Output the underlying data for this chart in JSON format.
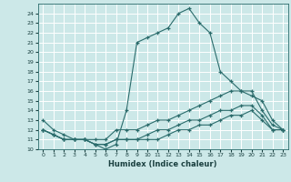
{
  "xlabel": "Humidex (Indice chaleur)",
  "ylabel": "",
  "xlim": [
    -0.5,
    23.5
  ],
  "ylim": [
    10,
    25
  ],
  "yticks": [
    10,
    11,
    12,
    13,
    14,
    15,
    16,
    17,
    18,
    19,
    20,
    21,
    22,
    23,
    24
  ],
  "xticks": [
    0,
    1,
    2,
    3,
    4,
    5,
    6,
    7,
    8,
    9,
    10,
    11,
    12,
    13,
    14,
    15,
    16,
    17,
    18,
    19,
    20,
    21,
    22,
    23
  ],
  "background_color": "#cce8e8",
  "grid_color": "#ffffff",
  "line_color": "#2a6b6b",
  "lines": [
    {
      "x": [
        0,
        1,
        2,
        3,
        4,
        5,
        6,
        7,
        8,
        9,
        10,
        11,
        12,
        13,
        14,
        15,
        16,
        17,
        18,
        19,
        20,
        21,
        22,
        23
      ],
      "y": [
        13,
        12,
        11.5,
        11,
        11,
        10.5,
        10,
        10.5,
        14,
        21,
        21.5,
        22,
        22.5,
        24,
        24.5,
        23,
        22,
        18,
        17,
        16,
        15.5,
        15,
        13,
        12
      ]
    },
    {
      "x": [
        0,
        1,
        2,
        3,
        4,
        5,
        6,
        7,
        8,
        9,
        10,
        11,
        12,
        13,
        14,
        15,
        16,
        17,
        18,
        19,
        20,
        21,
        22,
        23
      ],
      "y": [
        12,
        11.5,
        11,
        11,
        11,
        11,
        11,
        12,
        12,
        12,
        12.5,
        13,
        13,
        13.5,
        14,
        14.5,
        15,
        15.5,
        16,
        16,
        16,
        14,
        12.5,
        12
      ]
    },
    {
      "x": [
        0,
        1,
        2,
        3,
        4,
        5,
        6,
        7,
        8,
        9,
        10,
        11,
        12,
        13,
        14,
        15,
        16,
        17,
        18,
        19,
        20,
        21,
        22,
        23
      ],
      "y": [
        12,
        11.5,
        11,
        11,
        11,
        10.5,
        10.5,
        11,
        11,
        11,
        11.5,
        12,
        12,
        12.5,
        13,
        13,
        13.5,
        14,
        14,
        14.5,
        14.5,
        13.5,
        12,
        12
      ]
    },
    {
      "x": [
        0,
        1,
        2,
        3,
        4,
        5,
        6,
        7,
        8,
        9,
        10,
        11,
        12,
        13,
        14,
        15,
        16,
        17,
        18,
        19,
        20,
        21,
        22,
        23
      ],
      "y": [
        12,
        11.5,
        11,
        11,
        11,
        10.5,
        10.5,
        11,
        11,
        11,
        11,
        11,
        11.5,
        12,
        12,
        12.5,
        12.5,
        13,
        13.5,
        13.5,
        14,
        13,
        12,
        12
      ]
    }
  ]
}
